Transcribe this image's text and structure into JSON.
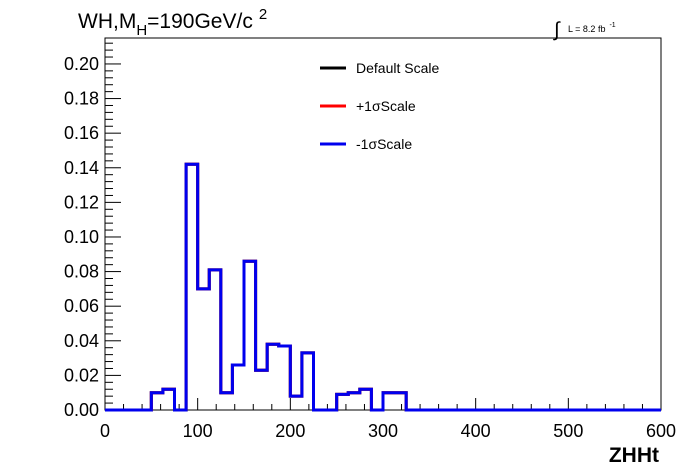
{
  "chart_data": {
    "type": "histogram",
    "title_main": "WH,M",
    "title_sub": "H",
    "title_tail": "=190GeV/c",
    "title_sup": "2",
    "lumi_integral": "∫",
    "lumi_text": "L = 8.2 fb",
    "lumi_sup": "-1",
    "xlabel": "ZHHt",
    "ylabel": "",
    "xlim": [
      0,
      600
    ],
    "ylim": [
      0,
      0.215
    ],
    "x_ticks": [
      0,
      100,
      200,
      300,
      400,
      500,
      600
    ],
    "x_tick_labels": [
      "0",
      "100",
      "200",
      "300",
      "400",
      "500",
      "600"
    ],
    "y_ticks": [
      0,
      0.02,
      0.04,
      0.06,
      0.08,
      0.1,
      0.12,
      0.14,
      0.16,
      0.18,
      0.2
    ],
    "y_tick_labels": [
      "0.00",
      "0.02",
      "0.04",
      "0.06",
      "0.08",
      "0.10",
      "0.12",
      "0.14",
      "0.16",
      "0.18",
      "0.20"
    ],
    "bin_width": 12.5,
    "bin_start": 0,
    "series": [
      {
        "name": "Default Scale",
        "color": "#000000",
        "values": [
          0,
          0,
          0,
          0,
          0.01,
          0.012,
          0,
          0.142,
          0.07,
          0.081,
          0.01,
          0.026,
          0.086,
          0.023,
          0.038,
          0.037,
          0.008,
          0.033,
          0,
          0,
          0.009,
          0.01,
          0.012,
          0,
          0.01,
          0.01,
          0,
          0,
          0,
          0,
          0,
          0,
          0,
          0,
          0,
          0,
          0,
          0,
          0,
          0,
          0,
          0,
          0,
          0,
          0,
          0,
          0,
          0
        ]
      },
      {
        "name": "+1σScale",
        "color": "#ff0000",
        "values": [
          0,
          0,
          0,
          0,
          0.01,
          0.012,
          0,
          0.142,
          0.07,
          0.081,
          0.01,
          0.026,
          0.086,
          0.023,
          0.038,
          0.037,
          0.008,
          0.033,
          0,
          0,
          0.009,
          0.01,
          0.012,
          0,
          0.01,
          0.01,
          0,
          0,
          0,
          0,
          0,
          0,
          0,
          0,
          0,
          0,
          0,
          0,
          0,
          0,
          0,
          0,
          0,
          0,
          0,
          0,
          0,
          0
        ]
      },
      {
        "name": "-1σScale",
        "color": "#0000ee",
        "values": [
          0,
          0,
          0,
          0,
          0.01,
          0.012,
          0,
          0.142,
          0.07,
          0.081,
          0.01,
          0.026,
          0.086,
          0.023,
          0.038,
          0.037,
          0.008,
          0.033,
          0,
          0,
          0.009,
          0.01,
          0.012,
          0,
          0.01,
          0.01,
          0,
          0,
          0,
          0,
          0,
          0,
          0,
          0,
          0,
          0,
          0,
          0,
          0,
          0,
          0,
          0,
          0,
          0,
          0,
          0,
          0,
          0
        ]
      }
    ],
    "legend_position": "top-center",
    "grid": false
  }
}
